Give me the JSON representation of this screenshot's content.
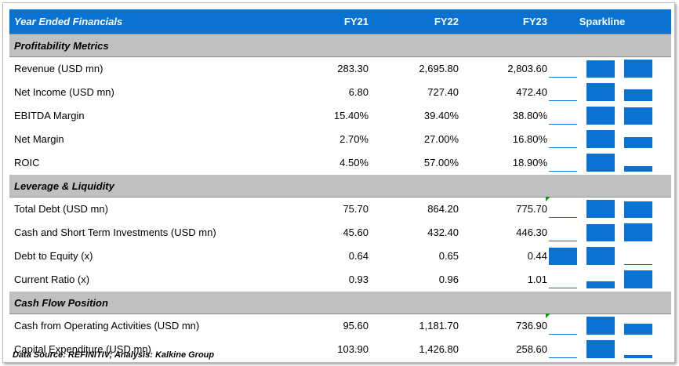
{
  "header": {
    "title": "Year Ended Financials",
    "fy21": "FY21",
    "fy22": "FY22",
    "fy23": "FY23",
    "sparkline": "Sparkline"
  },
  "sections": [
    {
      "title": "Profitability Metrics",
      "rows": [
        {
          "label": "Revenue (USD mn)",
          "fy21": "283.30",
          "fy22": "2,695.80",
          "fy23": "2,803.60",
          "spark": [
            283.3,
            2695.8,
            2803.6
          ]
        },
        {
          "label": "Net Income (USD mn)",
          "fy21": "6.80",
          "fy22": "727.40",
          "fy23": "472.40",
          "spark": [
            6.8,
            727.4,
            472.4
          ]
        },
        {
          "label": "EBITDA Margin",
          "fy21": "15.40%",
          "fy22": "39.40%",
          "fy23": "38.80%",
          "spark": [
            15.4,
            39.4,
            38.8
          ]
        },
        {
          "label": "Net Margin",
          "fy21": "2.70%",
          "fy22": "27.00%",
          "fy23": "16.80%",
          "spark": [
            2.7,
            27.0,
            16.8
          ]
        },
        {
          "label": "ROIC",
          "fy21": "4.50%",
          "fy22": "57.00%",
          "fy23": "18.90%",
          "spark": [
            4.5,
            57.0,
            18.9
          ]
        }
      ]
    },
    {
      "title": "Leverage & Liquidity",
      "rows": [
        {
          "label": "Total Debt (USD mn)",
          "fy21": "75.70",
          "fy22": "864.20",
          "fy23": "775.70",
          "spark": [
            75.7,
            864.2,
            775.7
          ],
          "marker": true
        },
        {
          "label": "Cash and Short Term Investments (USD mn)",
          "fy21": "45.60",
          "fy22": "432.40",
          "fy23": "446.30",
          "spark": [
            45.6,
            432.4,
            446.3
          ]
        },
        {
          "label": "Debt to Equity (x)",
          "fy21": "0.64",
          "fy22": "0.65",
          "fy23": "0.44",
          "spark": [
            0.64,
            0.65,
            0.44
          ]
        },
        {
          "label": "Current Ratio (x)",
          "fy21": "0.93",
          "fy22": "0.96",
          "fy23": "1.01",
          "spark": [
            0.93,
            0.96,
            1.01
          ]
        }
      ]
    },
    {
      "title": "Cash Flow Position",
      "rows": [
        {
          "label": "Cash from Operating Activities (USD mn)",
          "fy21": "95.60",
          "fy22": "1,181.70",
          "fy23": "736.90",
          "spark": [
            95.6,
            1181.7,
            736.9
          ],
          "marker": true
        },
        {
          "label": "Capital Expenditure (USD mn)",
          "fy21": "103.90",
          "fy22": "1,426.80",
          "fy23": "258.60",
          "spark": [
            103.9,
            1426.8,
            258.6
          ]
        }
      ]
    }
  ],
  "footer": "Data Source: REFINITIV; Analysis: Kalkine Group",
  "colors": {
    "header_bg": "#0a73d2",
    "section_bg": "#c0c0c0",
    "bar": "#0a73d2",
    "marker": "#1e8a1e"
  }
}
